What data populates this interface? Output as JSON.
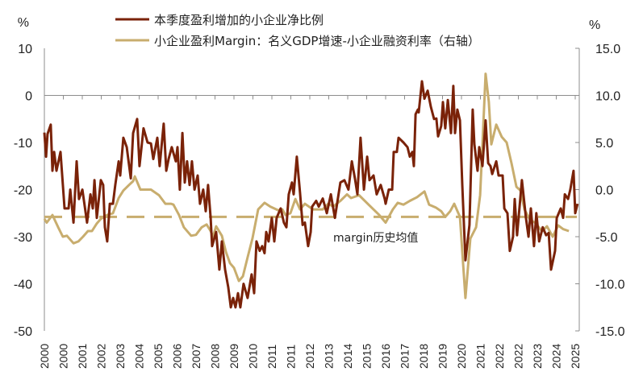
{
  "chart_data": {
    "type": "line",
    "left_axis": {
      "unit": "%",
      "range": [
        -50,
        10
      ],
      "ticks": [
        "10",
        "0",
        "-10",
        "-20",
        "-30",
        "-40",
        "-50"
      ]
    },
    "right_axis": {
      "unit": "%",
      "range": [
        -15,
        15
      ],
      "ticks": [
        "15.0",
        "10.0",
        "5.0",
        "0.0",
        "-5.0",
        "-10.0",
        "-15.0"
      ]
    },
    "x_range": [
      2000,
      2025
    ],
    "x_tick_labels": [
      "2000",
      "2000",
      "2001",
      "2002",
      "2003",
      "2004",
      "2005",
      "2006",
      "2007",
      "2008",
      "2009",
      "2010",
      "2011",
      "2011",
      "2012",
      "2013",
      "2014",
      "2015",
      "2016",
      "2017",
      "2018",
      "2019",
      "2020",
      "2021",
      "2022",
      "2022",
      "2023",
      "2024",
      "2025"
    ],
    "grid": false,
    "legend_position": "top",
    "colors": {
      "series1": "#7a2208",
      "series2": "#c8ad6e",
      "axis": "#8c8c8c"
    },
    "series": [
      {
        "name": "本季度盈利增加的小企业净比例",
        "axis": "left",
        "points": [
          [
            2000.0,
            -7.9
          ],
          [
            2000.08,
            -13
          ],
          [
            2000.15,
            -8.2
          ],
          [
            2000.3,
            -6.2
          ],
          [
            2000.38,
            -16
          ],
          [
            2000.46,
            -12
          ],
          [
            2000.57,
            -16
          ],
          [
            2000.76,
            -12
          ],
          [
            2000.95,
            -24
          ],
          [
            2001.14,
            -24
          ],
          [
            2001.22,
            -20
          ],
          [
            2001.37,
            -27
          ],
          [
            2001.52,
            -14
          ],
          [
            2001.63,
            -22
          ],
          [
            2001.79,
            -20
          ],
          [
            2002.01,
            -27
          ],
          [
            2002.17,
            -21
          ],
          [
            2002.28,
            -24
          ],
          [
            2002.36,
            -18
          ],
          [
            2002.47,
            -26
          ],
          [
            2002.66,
            -18
          ],
          [
            2002.77,
            -19
          ],
          [
            2002.85,
            -28
          ],
          [
            2002.96,
            -31
          ],
          [
            2003.08,
            -23
          ],
          [
            2003.23,
            -23
          ],
          [
            2003.34,
            -19
          ],
          [
            2003.5,
            -14
          ],
          [
            2003.57,
            -17
          ],
          [
            2003.72,
            -9
          ],
          [
            2003.88,
            -11
          ],
          [
            2004.07,
            -17.6
          ],
          [
            2004.18,
            -8
          ],
          [
            2004.37,
            -5
          ],
          [
            2004.48,
            -15
          ],
          [
            2004.67,
            -7
          ],
          [
            2004.86,
            -10
          ],
          [
            2005.02,
            -10.2
          ],
          [
            2005.13,
            -13.5
          ],
          [
            2005.32,
            -9
          ],
          [
            2005.43,
            -15
          ],
          [
            2005.62,
            -6
          ],
          [
            2005.74,
            -16
          ],
          [
            2005.85,
            -13.5
          ],
          [
            2006.0,
            -11
          ],
          [
            2006.19,
            -14
          ],
          [
            2006.27,
            -11
          ],
          [
            2006.38,
            -20
          ],
          [
            2006.5,
            -8
          ],
          [
            2006.61,
            -18.5
          ],
          [
            2006.72,
            -14
          ],
          [
            2006.84,
            -19
          ],
          [
            2006.95,
            -14
          ],
          [
            2007.07,
            -20
          ],
          [
            2007.22,
            -17
          ],
          [
            2007.33,
            -23
          ],
          [
            2007.48,
            -20
          ],
          [
            2007.6,
            -24.6
          ],
          [
            2007.71,
            -19
          ],
          [
            2007.83,
            -26
          ],
          [
            2007.9,
            -32
          ],
          [
            2008.09,
            -29
          ],
          [
            2008.24,
            -37
          ],
          [
            2008.36,
            -31
          ],
          [
            2008.51,
            -37
          ],
          [
            2008.66,
            -40.7
          ],
          [
            2008.78,
            -45
          ],
          [
            2008.89,
            -43
          ],
          [
            2009.0,
            -45
          ],
          [
            2009.12,
            -42
          ],
          [
            2009.23,
            -45
          ],
          [
            2009.38,
            -40
          ],
          [
            2009.57,
            -43
          ],
          [
            2009.76,
            -38
          ],
          [
            2009.88,
            -42
          ],
          [
            2009.99,
            -31
          ],
          [
            2010.14,
            -33
          ],
          [
            2010.26,
            -32
          ],
          [
            2010.37,
            -33.5
          ],
          [
            2010.45,
            -29
          ],
          [
            2010.56,
            -31
          ],
          [
            2010.71,
            -26
          ],
          [
            2010.83,
            -31
          ],
          [
            2010.94,
            -26
          ],
          [
            2011.13,
            -24
          ],
          [
            2011.28,
            -27
          ],
          [
            2011.4,
            -28
          ],
          [
            2011.51,
            -21
          ],
          [
            2011.66,
            -18.5
          ],
          [
            2011.74,
            -21
          ],
          [
            2011.89,
            -13
          ],
          [
            2012.04,
            -20.7
          ],
          [
            2012.16,
            -27.5
          ],
          [
            2012.27,
            -27
          ],
          [
            2012.42,
            -32
          ],
          [
            2012.54,
            -29
          ],
          [
            2012.61,
            -23.6
          ],
          [
            2012.8,
            -22.4
          ],
          [
            2012.92,
            -23.6
          ],
          [
            2013.11,
            -21.9
          ],
          [
            2013.3,
            -25
          ],
          [
            2013.49,
            -21
          ],
          [
            2013.68,
            -26
          ],
          [
            2013.94,
            -18.5
          ],
          [
            2014.13,
            -18
          ],
          [
            2014.32,
            -20
          ],
          [
            2014.48,
            -14
          ],
          [
            2014.63,
            -17.8
          ],
          [
            2014.74,
            -21
          ],
          [
            2014.89,
            -9
          ],
          [
            2015.05,
            -20
          ],
          [
            2015.2,
            -13
          ],
          [
            2015.31,
            -18
          ],
          [
            2015.5,
            -17
          ],
          [
            2015.65,
            -21
          ],
          [
            2015.84,
            -19
          ],
          [
            2016.03,
            -22
          ],
          [
            2016.07,
            -23
          ],
          [
            2016.22,
            -20
          ],
          [
            2016.38,
            -20
          ],
          [
            2016.45,
            -12
          ],
          [
            2016.6,
            -12
          ],
          [
            2016.68,
            -9
          ],
          [
            2016.91,
            -10
          ],
          [
            2017.1,
            -11
          ],
          [
            2017.21,
            -13
          ],
          [
            2017.33,
            -12
          ],
          [
            2017.4,
            -15
          ],
          [
            2017.48,
            -4
          ],
          [
            2017.59,
            -3
          ],
          [
            2017.63,
            -3.6
          ],
          [
            2017.78,
            3
          ],
          [
            2017.9,
            -0.7
          ],
          [
            2018.05,
            1
          ],
          [
            2018.2,
            -2.4
          ],
          [
            2018.35,
            -5
          ],
          [
            2018.46,
            -4.9
          ],
          [
            2018.54,
            -8.7
          ],
          [
            2018.69,
            -6.5
          ],
          [
            2018.77,
            -1.4
          ],
          [
            2018.88,
            -7
          ],
          [
            2019.0,
            -1
          ],
          [
            2019.15,
            -8
          ],
          [
            2019.26,
            2
          ],
          [
            2019.34,
            -8
          ],
          [
            2019.45,
            -3
          ],
          [
            2019.57,
            -5.3
          ],
          [
            2019.68,
            -19
          ],
          [
            2019.83,
            -35
          ],
          [
            2020.02,
            -27.5
          ],
          [
            2020.17,
            -3
          ],
          [
            2020.25,
            -10.4
          ],
          [
            2020.4,
            -16
          ],
          [
            2020.48,
            -11
          ],
          [
            2020.63,
            -15
          ],
          [
            2020.78,
            -5.3
          ],
          [
            2020.9,
            -14.4
          ],
          [
            2021.01,
            -15
          ],
          [
            2021.09,
            -16.7
          ],
          [
            2021.28,
            -14
          ],
          [
            2021.39,
            -17
          ],
          [
            2021.58,
            -17
          ],
          [
            2021.66,
            -24
          ],
          [
            2021.81,
            -25
          ],
          [
            2021.92,
            -33
          ],
          [
            2022.07,
            -30
          ],
          [
            2022.15,
            -22
          ],
          [
            2022.26,
            -29.7
          ],
          [
            2022.49,
            -18
          ],
          [
            2022.68,
            -26
          ],
          [
            2022.8,
            -30
          ],
          [
            2022.91,
            -24
          ],
          [
            2023.06,
            -32
          ],
          [
            2023.17,
            -25
          ],
          [
            2023.3,
            -31
          ],
          [
            2023.47,
            -28
          ],
          [
            2023.63,
            -29.7
          ],
          [
            2023.75,
            -29.2
          ],
          [
            2023.86,
            -37
          ],
          [
            2024.05,
            -33
          ],
          [
            2024.13,
            -26
          ],
          [
            2024.32,
            -24
          ],
          [
            2024.43,
            -26
          ],
          [
            2024.51,
            -21
          ],
          [
            2024.66,
            -22
          ],
          [
            2024.77,
            -20
          ],
          [
            2024.92,
            -16
          ],
          [
            2025.0,
            -25
          ],
          [
            2025.11,
            -23
          ]
        ]
      },
      {
        "name": "小企业盈利Margin：名义GDP增速-小企业融资利率（右轴）",
        "axis": "right",
        "points": [
          [
            2000.0,
            -3.1
          ],
          [
            2000.11,
            -3.5
          ],
          [
            2000.38,
            -2.7
          ],
          [
            2000.65,
            -4.0
          ],
          [
            2000.87,
            -5.0
          ],
          [
            2001.06,
            -4.9
          ],
          [
            2001.37,
            -5.7
          ],
          [
            2001.6,
            -5.5
          ],
          [
            2001.82,
            -5.0
          ],
          [
            2002.05,
            -4.4
          ],
          [
            2002.24,
            -4.4
          ],
          [
            2002.47,
            -3.6
          ],
          [
            2002.66,
            -3.1
          ],
          [
            2002.96,
            -2.7
          ],
          [
            2003.23,
            -2.5
          ],
          [
            2003.5,
            -0.9
          ],
          [
            2003.72,
            -0.1
          ],
          [
            2003.99,
            0.5
          ],
          [
            2004.18,
            0.9
          ],
          [
            2004.26,
            1.4
          ],
          [
            2004.52,
            0
          ],
          [
            2005.02,
            0
          ],
          [
            2005.4,
            -0.6
          ],
          [
            2005.7,
            -1.5
          ],
          [
            2005.97,
            -1.5
          ],
          [
            2006.08,
            -1.6
          ],
          [
            2006.34,
            -2.7
          ],
          [
            2006.57,
            -4.0
          ],
          [
            2006.91,
            -4.9
          ],
          [
            2007.14,
            -4.8
          ],
          [
            2007.41,
            -4.0
          ],
          [
            2007.64,
            -3.7
          ],
          [
            2007.83,
            -4.4
          ],
          [
            2007.94,
            -5.0
          ],
          [
            2008.09,
            -3.9
          ],
          [
            2008.36,
            -4.9
          ],
          [
            2008.55,
            -6.6
          ],
          [
            2008.74,
            -7.8
          ],
          [
            2008.93,
            -8.3
          ],
          [
            2009.16,
            -9.7
          ],
          [
            2009.35,
            -9.2
          ],
          [
            2009.57,
            -7.2
          ],
          [
            2009.8,
            -5.2
          ],
          [
            2010.07,
            -2.1
          ],
          [
            2010.37,
            -1.4
          ],
          [
            2010.64,
            -1.8
          ],
          [
            2011.02,
            -2.2
          ],
          [
            2011.21,
            -2.1
          ],
          [
            2011.36,
            -2.7
          ],
          [
            2011.59,
            -2.5
          ],
          [
            2011.82,
            -1.0
          ],
          [
            2012.04,
            -2.1
          ],
          [
            2012.27,
            -1.5
          ],
          [
            2012.65,
            -2.1
          ],
          [
            2013.11,
            -2.1
          ],
          [
            2013.37,
            -1.5
          ],
          [
            2013.6,
            -1.8
          ],
          [
            2013.94,
            -1.2
          ],
          [
            2014.25,
            -0.5
          ],
          [
            2014.44,
            -0.9
          ],
          [
            2014.82,
            -0.6
          ],
          [
            2015.27,
            -1.6
          ],
          [
            2015.77,
            -2.7
          ],
          [
            2016.07,
            -3.5
          ],
          [
            2016.41,
            -2.1
          ],
          [
            2016.64,
            -1.4
          ],
          [
            2016.91,
            -1.6
          ],
          [
            2017.21,
            -1.2
          ],
          [
            2017.55,
            -0.8
          ],
          [
            2017.9,
            -0.2
          ],
          [
            2018.12,
            -1.6
          ],
          [
            2018.43,
            -1.9
          ],
          [
            2018.69,
            -2.3
          ],
          [
            2018.88,
            -2.9
          ],
          [
            2019.11,
            -2.3
          ],
          [
            2019.3,
            -1.5
          ],
          [
            2019.57,
            -2.9
          ],
          [
            2019.83,
            -11.5
          ],
          [
            2020.06,
            -5.2
          ],
          [
            2020.33,
            -4.0
          ],
          [
            2020.52,
            -0.6
          ],
          [
            2020.63,
            4.8
          ],
          [
            2020.78,
            12.3
          ],
          [
            2020.93,
            9.3
          ],
          [
            2021.05,
            4.8
          ],
          [
            2021.28,
            6.9
          ],
          [
            2021.54,
            5.6
          ],
          [
            2021.77,
            5.0
          ],
          [
            2022.0,
            2.8
          ],
          [
            2022.23,
            0.3
          ],
          [
            2022.42,
            -0.1
          ],
          [
            2022.61,
            -2.1
          ],
          [
            2022.87,
            -3.2
          ],
          [
            2023.1,
            -3.5
          ],
          [
            2023.44,
            -4.4
          ],
          [
            2023.67,
            -3.9
          ],
          [
            2023.94,
            -5.0
          ],
          [
            2024.2,
            -3.8
          ],
          [
            2024.43,
            -4.2
          ],
          [
            2024.7,
            -4.4
          ]
        ]
      }
    ],
    "reference_line": {
      "label": "margin历史均值",
      "axis": "right",
      "value": -2.9,
      "style": "dashed"
    }
  }
}
